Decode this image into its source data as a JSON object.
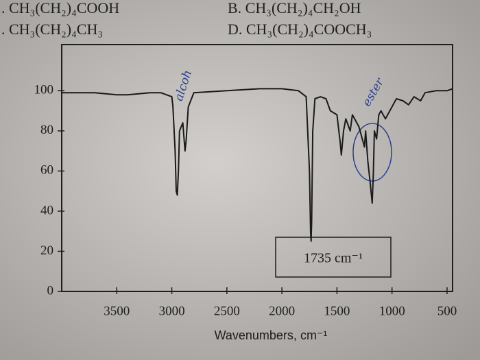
{
  "options": [
    ". CH₃(CH₂)₄COOH",
    "B. CH₃(CH₂)₄CH₂OH",
    ". CH₃(CH₂)₄CH₃",
    "D. CH₃(CH₂)₄COOCH₃"
  ],
  "chart_data": {
    "type": "line",
    "xlabel": "Wavenumbers, cm⁻¹",
    "annotations": [
      "1735 cm⁻¹",
      "alcoh",
      "ester"
    ],
    "color": "#1a1a1a",
    "x": [
      4000,
      3700,
      3500,
      3400,
      3200,
      3100,
      3000,
      2990,
      2970,
      2960,
      2950,
      2940,
      2930,
      2900,
      2880,
      2870,
      2850,
      2800,
      2500,
      2200,
      2000,
      1850,
      1780,
      1750,
      1740,
      1735,
      1730,
      1720,
      1700,
      1650,
      1600,
      1560,
      1500,
      1470,
      1460,
      1440,
      1420,
      1380,
      1360,
      1300,
      1250,
      1240,
      1220,
      1200,
      1180,
      1170,
      1160,
      1140,
      1120,
      1100,
      1060,
      1000,
      960,
      900,
      850,
      800,
      740,
      700,
      600,
      500,
      450
    ],
    "values": [
      99,
      99,
      98,
      98,
      99,
      99,
      97,
      92,
      70,
      50,
      48,
      60,
      80,
      84,
      70,
      75,
      92,
      99,
      100,
      101,
      101,
      100,
      97,
      60,
      30,
      25,
      35,
      80,
      96,
      97,
      96,
      90,
      88,
      74,
      68,
      80,
      86,
      80,
      88,
      82,
      72,
      80,
      65,
      55,
      44,
      58,
      80,
      76,
      88,
      90,
      86,
      92,
      96,
      95,
      93,
      97,
      95,
      99,
      100,
      100,
      101
    ],
    "xlim": [
      4000,
      450
    ],
    "ylim": [
      0,
      123
    ],
    "xticks": [
      3500,
      3000,
      2500,
      2000,
      1500,
      1000,
      500
    ],
    "yticks": [
      0,
      20,
      40,
      60,
      80,
      100
    ]
  }
}
